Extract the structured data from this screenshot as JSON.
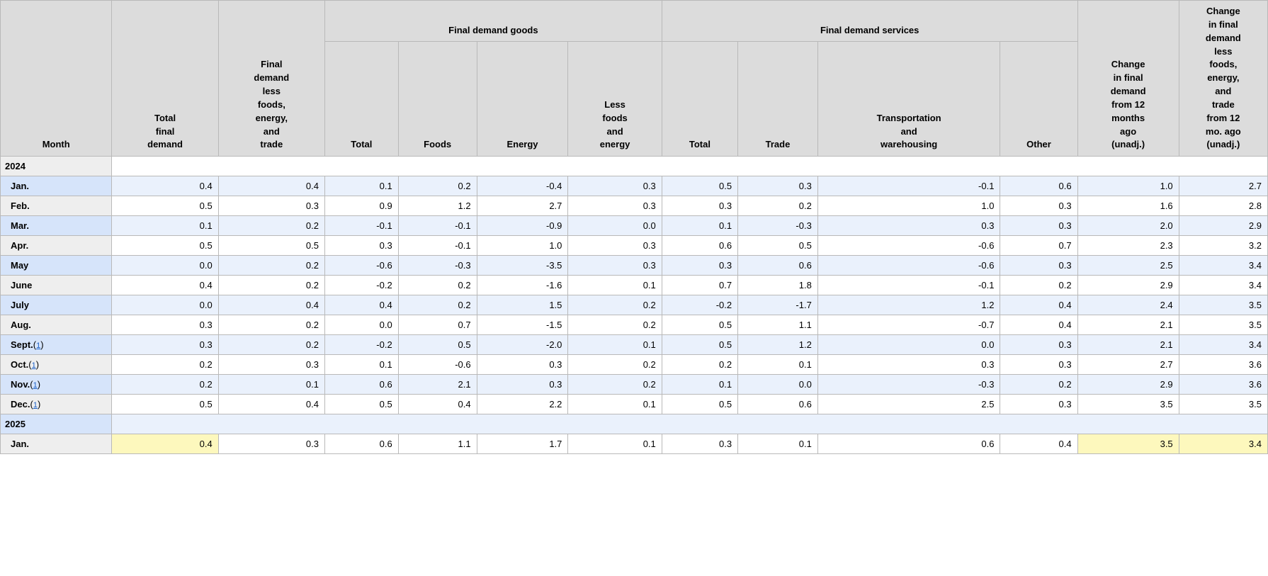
{
  "table": {
    "header": {
      "month": "Month",
      "total_final_demand": "Total\nfinal\ndemand",
      "fd_less": "Final\ndemand\nless\nfoods,\nenergy,\nand\ntrade",
      "goods_group": "Final demand goods",
      "goods_total": "Total",
      "goods_foods": "Foods",
      "goods_energy": "Energy",
      "goods_lfe": "Less\nfoods\nand\nenergy",
      "services_group": "Final demand services",
      "services_total": "Total",
      "services_trade": "Trade",
      "services_tw": "Transportation\nand\nwarehousing",
      "services_other": "Other",
      "chg_12mo": "Change\nin final\ndemand\nfrom 12\nmonths\nago\n(unadj.)",
      "chg_12mo_less": "Change\nin final\ndemand\nless\nfoods,\nenergy,\nand\ntrade\nfrom 12\nmo. ago\n(unadj.)"
    },
    "footnote_link_text": "1",
    "sections": [
      {
        "year": "2024",
        "year_row_blue": false,
        "rows": [
          {
            "month": "Jan.",
            "blue": true,
            "footnote": false,
            "v": [
              "0.4",
              "0.4",
              "0.1",
              "0.2",
              "-0.4",
              "0.3",
              "0.5",
              "0.3",
              "-0.1",
              "0.6",
              "1.0",
              "2.7"
            ]
          },
          {
            "month": "Feb.",
            "blue": false,
            "footnote": false,
            "v": [
              "0.5",
              "0.3",
              "0.9",
              "1.2",
              "2.7",
              "0.3",
              "0.3",
              "0.2",
              "1.0",
              "0.3",
              "1.6",
              "2.8"
            ]
          },
          {
            "month": "Mar.",
            "blue": true,
            "footnote": false,
            "v": [
              "0.1",
              "0.2",
              "-0.1",
              "-0.1",
              "-0.9",
              "0.0",
              "0.1",
              "-0.3",
              "0.3",
              "0.3",
              "2.0",
              "2.9"
            ]
          },
          {
            "month": "Apr.",
            "blue": false,
            "footnote": false,
            "v": [
              "0.5",
              "0.5",
              "0.3",
              "-0.1",
              "1.0",
              "0.3",
              "0.6",
              "0.5",
              "-0.6",
              "0.7",
              "2.3",
              "3.2"
            ]
          },
          {
            "month": "May",
            "blue": true,
            "footnote": false,
            "v": [
              "0.0",
              "0.2",
              "-0.6",
              "-0.3",
              "-3.5",
              "0.3",
              "0.3",
              "0.6",
              "-0.6",
              "0.3",
              "2.5",
              "3.4"
            ]
          },
          {
            "month": "June",
            "blue": false,
            "footnote": false,
            "v": [
              "0.4",
              "0.2",
              "-0.2",
              "0.2",
              "-1.6",
              "0.1",
              "0.7",
              "1.8",
              "-0.1",
              "0.2",
              "2.9",
              "3.4"
            ]
          },
          {
            "month": "July",
            "blue": true,
            "footnote": false,
            "v": [
              "0.0",
              "0.4",
              "0.4",
              "0.2",
              "1.5",
              "0.2",
              "-0.2",
              "-1.7",
              "1.2",
              "0.4",
              "2.4",
              "3.5"
            ]
          },
          {
            "month": "Aug.",
            "blue": false,
            "footnote": false,
            "v": [
              "0.3",
              "0.2",
              "0.0",
              "0.7",
              "-1.5",
              "0.2",
              "0.5",
              "1.1",
              "-0.7",
              "0.4",
              "2.1",
              "3.5"
            ]
          },
          {
            "month": "Sept.",
            "blue": true,
            "footnote": true,
            "v": [
              "0.3",
              "0.2",
              "-0.2",
              "0.5",
              "-2.0",
              "0.1",
              "0.5",
              "1.2",
              "0.0",
              "0.3",
              "2.1",
              "3.4"
            ]
          },
          {
            "month": "Oct.",
            "blue": false,
            "footnote": true,
            "v": [
              "0.2",
              "0.3",
              "0.1",
              "-0.6",
              "0.3",
              "0.2",
              "0.2",
              "0.1",
              "0.3",
              "0.3",
              "2.7",
              "3.6"
            ]
          },
          {
            "month": "Nov.",
            "blue": true,
            "footnote": true,
            "v": [
              "0.2",
              "0.1",
              "0.6",
              "2.1",
              "0.3",
              "0.2",
              "0.1",
              "0.0",
              "-0.3",
              "0.2",
              "2.9",
              "3.6"
            ]
          },
          {
            "month": "Dec.",
            "blue": false,
            "footnote": true,
            "v": [
              "0.5",
              "0.4",
              "0.5",
              "0.4",
              "2.2",
              "0.1",
              "0.5",
              "0.6",
              "2.5",
              "0.3",
              "3.5",
              "3.5"
            ]
          }
        ]
      },
      {
        "year": "2025",
        "year_row_blue": true,
        "rows": [
          {
            "month": "Jan.",
            "blue": false,
            "footnote": false,
            "highlight_cols": [
              0,
              10,
              11
            ],
            "v": [
              "0.4",
              "0.3",
              "0.6",
              "1.1",
              "1.7",
              "0.1",
              "0.3",
              "0.1",
              "0.6",
              "0.4",
              "3.5",
              "3.4"
            ]
          }
        ]
      }
    ],
    "highlight_color": "#fdf8bd",
    "colors": {
      "header_bg": "#dcdcdc",
      "border": "#b9b9b9",
      "rowhead_bg": "#eeeeee",
      "blue_cell_bg": "#eaf1fc",
      "blue_rowhead_bg": "#d6e4fa",
      "link": "#1a5fc7"
    }
  }
}
